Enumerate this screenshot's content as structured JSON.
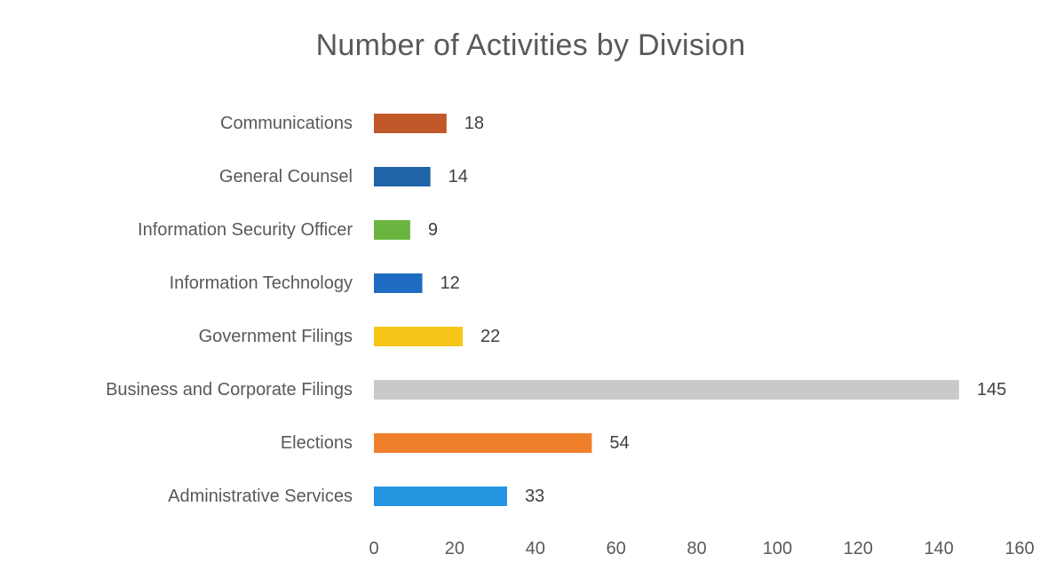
{
  "chart_data": {
    "type": "bar",
    "orientation": "horizontal",
    "title": "Number of Activities by Division",
    "xlabel": "",
    "ylabel": "",
    "xlim": [
      0,
      160
    ],
    "x_ticks": [
      0,
      20,
      40,
      60,
      80,
      100,
      120,
      140,
      160
    ],
    "grid": false,
    "legend": "none",
    "categories": [
      "Communications",
      "General Counsel",
      "Information Security Officer",
      "Information Technology",
      "Government Filings",
      "Business and Corporate Filings",
      "Elections",
      "Administrative Services"
    ],
    "values": [
      18,
      14,
      9,
      12,
      22,
      145,
      54,
      33
    ],
    "colors": [
      "#c0582a",
      "#1f63a8",
      "#6ab43f",
      "#1f6bc4",
      "#f5c518",
      "#c9c9c9",
      "#f07f2c",
      "#2494e0"
    ]
  }
}
